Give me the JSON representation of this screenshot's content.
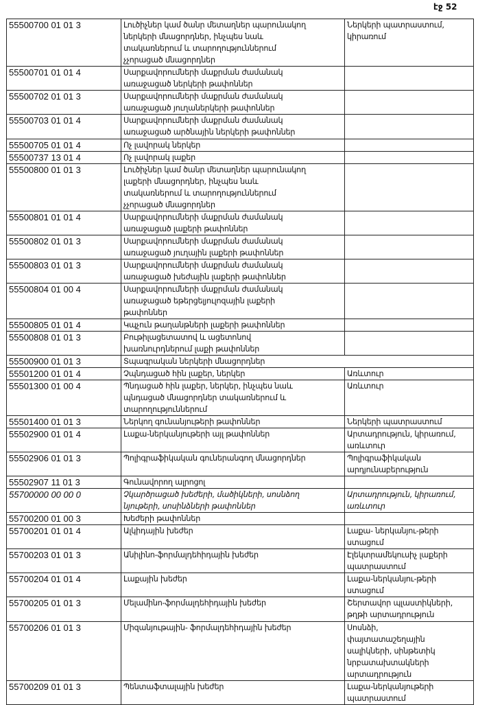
{
  "page_label": "էջ 52",
  "rows": [
    {
      "code": "55500700 01 01 3",
      "name": "Լուծիչներ կամ ծանր մետաղներ պարունակող\nներկերի մնացորդներ, ինչպես նաև\nտակառներում և տարողություններում\nչչորացած մնացորդներ",
      "use": "Ներկերի պատրաստում,\nկիրառում"
    },
    {
      "code": "55500701 01 01 4",
      "name": "Սարքավորումների մաքրման ժամանակ\nառաջացած ներկերի թափոններ",
      "use": ""
    },
    {
      "code": "55500702 01 01 3",
      "name": "Սարքավորումների մաքրման ժամանակ\nառաջացած յուղաներկերի թափոններ",
      "use": ""
    },
    {
      "code": "55500703 01 01 4",
      "name": "Սարքավորումների մաքրման ժամանակ\nառաջացած արծնային  ներկերի թափոններ",
      "use": ""
    },
    {
      "code": "55500705 01 01 4",
      "name": "Ոչ լավորակ ներկեր",
      "use": ""
    },
    {
      "code": "55500737 13 01 4",
      "name": "Ոչ լավորակ լաքեր",
      "use": ""
    },
    {
      "code": "55500800 01 01 3",
      "name": "Լուծիչներ կամ ծանր մետաղներ պարունակող\nլաքերի մնացորդներ, ինչպես նաև\nտակառներում  և տարողություններում\nչչորացած մնացորդներ",
      "use": ""
    },
    {
      "code": "55500801 01 01 4",
      "name": "Սարքավորումների մաքրման ժամանակ\nառաջացած լաքերի թափոններ",
      "use": ""
    },
    {
      "code": "55500802 01 01 3",
      "name": "Սարքավորումների մաքրման ժամանակ\nառաջացած յուղային լաքերի թափոններ",
      "use": ""
    },
    {
      "code": "55500803 01 01 3",
      "name": "Սարքավորումների մաքրման ժամանակ\nառաջացած խեժային լաքերի թափոններ",
      "use": ""
    },
    {
      "code": "55500804 01 00 4",
      "name": "Սարքավորումների մաքրման ժամանակ\nառաջացած եթերցելյուլոզային լաքերի\nթափոններ",
      "use": ""
    },
    {
      "code": "55500805 01 01 4",
      "name": "Կպչուն  թաղանթների լաքերի թափոններ",
      "use": ""
    },
    {
      "code": "55500808 01 01 3",
      "name": "Բութիլացետատով և ացետոնով\nխառնուրդներում լաքի թափոններ",
      "use": ""
    },
    {
      "code": "55500900 01 01 3",
      "name": "Տպագրական ներկերի մնացորդներ",
      "use": "",
      "span": true
    },
    {
      "code": "55501200 01 01 4",
      "name": "Չպնդացած հին լաքեր, ներկեր",
      "use": "Առևտուր"
    },
    {
      "code": "55501300 01 00 4",
      "name": "Պնդացած հին լաքեր, ներկեր, ինչպես նաև\nպնդացած մնացորդներ տակառներում և\nտարողություններում",
      "use": "Առևտուր"
    },
    {
      "code": "55501400 01 01 3",
      "name": "Ներկող գունանյութերի թափոններ",
      "use": "Ներկերի պատրաստում"
    },
    {
      "code": "55502900 01 01 4",
      "name": "Լաքա-ներկանյութերի այլ թափոններ",
      "use": "Արտադրություն, կիրառում,\nառևտուր"
    },
    {
      "code": "55502906 01 01 3",
      "name": "Պոլիգրաֆիկական գուներանգող մնացորդներ",
      "use": "Պոլիգրաֆիկական\nարդյունաբերություն"
    },
    {
      "code": "55502907 11 01 3",
      "name": "Գունավորող ալրոցոլ",
      "use": ""
    },
    {
      "code": "55700000 00 00 0",
      "name": "Չկարծրացած խեժերի, մածիկների, սոսնձող\nնյութերի, սոսինձների թափոններ",
      "use": "Արտադրություն, կիրառում,\nառևտուր",
      "italic": true
    },
    {
      "code": "55700200 01 00 3",
      "name": "Խեժերի թափոններ",
      "use": ""
    },
    {
      "code": "55700201 01 01 4",
      "name": "Ալկիդային խեժեր",
      "use": "Լաքա- ներկանյու-թերի\nստացում"
    },
    {
      "code": "55700203 01 01 3",
      "name": "Անիլինո-ֆորմալդեհիդային խեժեր",
      "use": "Էլեկտրամեկուսիչ լաքերի\nպատրաստում"
    },
    {
      "code": "55700204 01 01 4",
      "name": "Լաքային խեժեր",
      "use": "Լաքա-ներկանյու-թերի\nստացում"
    },
    {
      "code": "55700205  01 01 3",
      "name": "Մելամինո-ֆորմալդեհիդային խեժեր",
      "use": "Շերտավոր պլաստիկների,\nթղթի արտադրություն"
    },
    {
      "code": "55700206 01 01 3",
      "name": "Միզանյութային- ֆորմալդեհիդային խեժեր",
      "use": "Սոսնձի,\nփայտատաշեղային\nսալիկների, սինթետիկ\nնրբատախտակների\nարտադրություն"
    },
    {
      "code": "55700209 01 01 3",
      "name": "Պենտաֆտալային խեժեր",
      "use": "Լաքա-ներկանյութերի\nպատրաստում"
    }
  ]
}
